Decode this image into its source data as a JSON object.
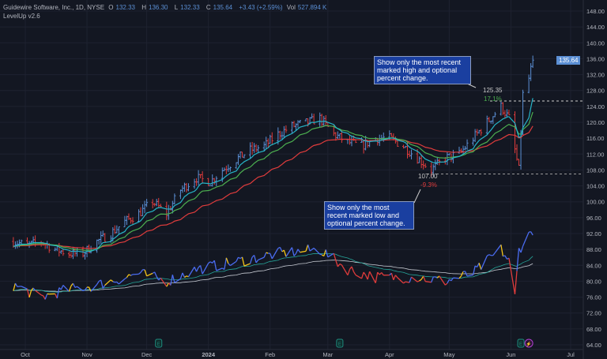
{
  "header": {
    "symbol": "Guidewire Software, Inc., 1D, NYSE",
    "open_label": "O",
    "open": "132.33",
    "high_label": "H",
    "high": "136.30",
    "low_label": "L",
    "low": "132.33",
    "close_label": "C",
    "close": "135.64",
    "change": "+3.43 (+2.59%)",
    "vol_label": "Vol",
    "volume": "527.894 K",
    "indicator": "LevelUp v2.6"
  },
  "annotations": {
    "high_note": "Show only the most recent marked high and optional percent change.",
    "low_note": "Show only the most recent marked low and optional percent change.",
    "high_value": "125.35",
    "high_pct": "17.1%",
    "low_value": "107.00",
    "low_pct": "-9.3%"
  },
  "last_price": "135.64",
  "colors": {
    "background": "#131722",
    "up": "#5b8fd4",
    "down": "#e03c3c",
    "ema_fast": "#26b5c8",
    "ema_mid": "#4caf50",
    "ema_slow": "#e03c3c",
    "highlight": "#f5c518",
    "earnings": "#1e8c7e",
    "dividend": "#b040d0"
  },
  "chart_data": {
    "type": "ohlc",
    "y_ticks": [
      "148.00",
      "144.00",
      "140.00",
      "136.00",
      "132.00",
      "128.00",
      "124.00",
      "120.00",
      "116.00",
      "112.00",
      "108.00",
      "104.00",
      "100.00",
      "96.00",
      "92.00",
      "88.00",
      "84.00",
      "80.00",
      "76.00",
      "72.00",
      "68.00",
      "64.00"
    ],
    "ylim": [
      64,
      148
    ],
    "x_ticks": [
      "Oct",
      "Nov",
      "Dec",
      "2024",
      "Feb",
      "Mar",
      "Apr",
      "May",
      "Jun",
      "Jul"
    ],
    "approx_closes": [
      [
        "2023-09-25",
        90
      ],
      [
        "2023-10-02",
        89
      ],
      [
        "2023-10-09",
        90
      ],
      [
        "2023-10-16",
        88
      ],
      [
        "2023-10-23",
        87
      ],
      [
        "2023-10-30",
        87
      ],
      [
        "2023-11-06",
        90
      ],
      [
        "2023-11-13",
        92
      ],
      [
        "2023-11-20",
        95
      ],
      [
        "2023-11-27",
        97
      ],
      [
        "2023-12-04",
        100
      ],
      [
        "2023-12-11",
        97
      ],
      [
        "2023-12-18",
        103
      ],
      [
        "2023-12-26",
        106
      ],
      [
        "2024-01-02",
        105
      ],
      [
        "2024-01-08",
        108
      ],
      [
        "2024-01-16",
        111
      ],
      [
        "2024-01-22",
        113
      ],
      [
        "2024-01-29",
        114
      ],
      [
        "2024-02-05",
        117
      ],
      [
        "2024-02-12",
        119
      ],
      [
        "2024-02-20",
        120
      ],
      [
        "2024-02-26",
        121
      ],
      [
        "2024-03-04",
        117
      ],
      [
        "2024-03-11",
        115
      ],
      [
        "2024-03-18",
        114
      ],
      [
        "2024-03-25",
        116
      ],
      [
        "2024-04-01",
        116
      ],
      [
        "2024-04-08",
        114
      ],
      [
        "2024-04-15",
        111
      ],
      [
        "2024-04-22",
        108
      ],
      [
        "2024-04-29",
        111
      ],
      [
        "2024-05-06",
        112
      ],
      [
        "2024-05-13",
        116
      ],
      [
        "2024-05-20",
        120
      ],
      [
        "2024-05-27",
        124
      ],
      [
        "2024-05-31",
        121
      ],
      [
        "2024-06-03",
        113
      ],
      [
        "2024-06-05",
        108
      ],
      [
        "2024-06-07",
        127
      ],
      [
        "2024-06-10",
        131
      ],
      [
        "2024-06-12",
        135.64
      ]
    ],
    "oscillator": [
      [
        "2023-09-25",
        79
      ],
      [
        "2023-10-09",
        76
      ],
      [
        "2023-10-23",
        78
      ],
      [
        "2023-11-06",
        79
      ],
      [
        "2023-11-27",
        82
      ],
      [
        "2023-12-11",
        80
      ],
      [
        "2023-12-26",
        83
      ],
      [
        "2024-01-16",
        85
      ],
      [
        "2024-02-05",
        87
      ],
      [
        "2024-02-26",
        88
      ],
      [
        "2024-03-11",
        83
      ],
      [
        "2024-03-25",
        81
      ],
      [
        "2024-04-15",
        81
      ],
      [
        "2024-04-29",
        80
      ],
      [
        "2024-05-13",
        82
      ],
      [
        "2024-05-27",
        88
      ],
      [
        "2024-05-31",
        85
      ],
      [
        "2024-06-03",
        76
      ],
      [
        "2024-06-05",
        88
      ],
      [
        "2024-06-12",
        93
      ]
    ],
    "marked_high": 125.35,
    "marked_low": 107.0,
    "events": [
      {
        "type": "earnings",
        "date": "2023-12-07",
        "label": "E"
      },
      {
        "type": "earnings",
        "date": "2024-03-07",
        "label": "E"
      },
      {
        "type": "earnings",
        "date": "2024-06-06",
        "label": "E"
      },
      {
        "type": "dividend",
        "date": "2024-06-10",
        "label": "⚡"
      }
    ]
  }
}
